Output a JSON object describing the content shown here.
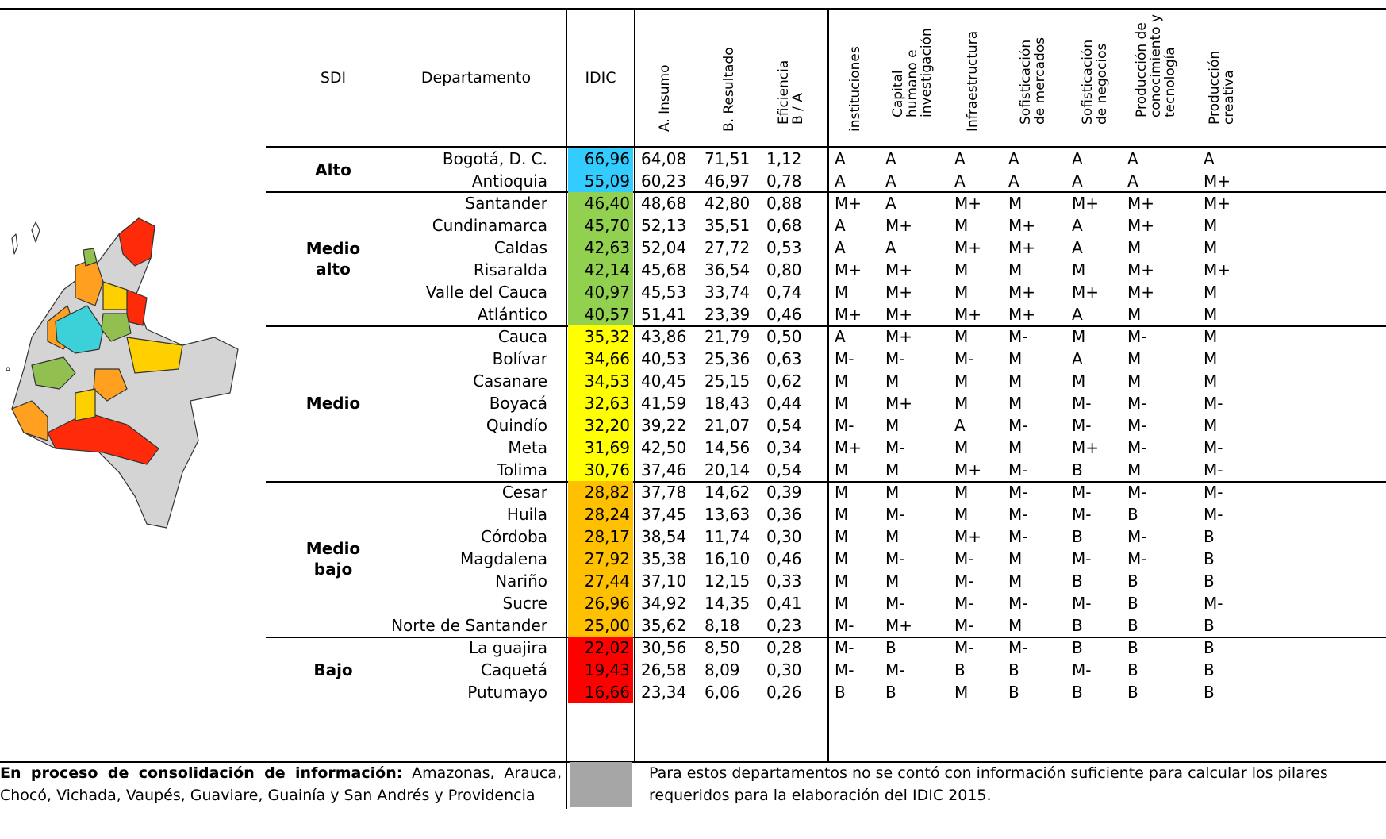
{
  "headers": {
    "sdi": "SDI",
    "departamento": "Departamento",
    "idic": "IDIC",
    "insumo": "A. Insumo",
    "resultado": "B. Resultado",
    "eficiencia": "Eficiencia\nB / A",
    "instituciones": "instituciones",
    "capital": "Capital\nhumano e\ninvestigación",
    "infraestructura": "Infraestructura",
    "sof_mercados": "Sofisticación\nde mercados",
    "sof_negocios": "Sofisticación\nde negocios",
    "produccion_conocimiento": "Producción de\nconocimiento y\ntecnología",
    "produccion_creativa": "Producción\ncreativa"
  },
  "colors": {
    "Alto": "#33ccff",
    "Medio alto": "#92d050",
    "Medio": "#ffff00",
    "Medio bajo": "#ffc000",
    "Bajo": "#ff0000",
    "gray": "#a6a6a6"
  },
  "groups": [
    {
      "label": "Alto",
      "rows": [
        {
          "dep": "Bogotá, D. C.",
          "idic": "66,96",
          "a": "64,08",
          "b": "71,51",
          "e": "1,12",
          "p": [
            "A",
            "A",
            "A",
            "A",
            "A",
            "A",
            "A"
          ]
        },
        {
          "dep": "Antioquia",
          "idic": "55,09",
          "a": "60,23",
          "b": "46,97",
          "e": "0,78",
          "p": [
            "A",
            "A",
            "A",
            "A",
            "A",
            "A",
            "M+"
          ]
        }
      ]
    },
    {
      "label": "Medio\nalto",
      "rows": [
        {
          "dep": "Santander",
          "idic": "46,40",
          "a": "48,68",
          "b": "42,80",
          "e": "0,88",
          "p": [
            "M+",
            "A",
            "M+",
            "M",
            "M+",
            "M+",
            "M+"
          ]
        },
        {
          "dep": "Cundinamarca",
          "idic": "45,70",
          "a": "52,13",
          "b": "35,51",
          "e": "0,68",
          "p": [
            "A",
            "M+",
            "M",
            "M+",
            "A",
            "M+",
            "M"
          ]
        },
        {
          "dep": "Caldas",
          "idic": "42,63",
          "a": "52,04",
          "b": "27,72",
          "e": "0,53",
          "p": [
            "A",
            "A",
            "M+",
            "M+",
            "A",
            "M",
            "M"
          ]
        },
        {
          "dep": "Risaralda",
          "idic": "42,14",
          "a": "45,68",
          "b": "36,54",
          "e": "0,80",
          "p": [
            "M+",
            "M+",
            "M",
            "M",
            "M",
            "M+",
            "M+"
          ]
        },
        {
          "dep": "Valle del Cauca",
          "idic": "40,97",
          "a": "45,53",
          "b": "33,74",
          "e": "0,74",
          "p": [
            "M",
            "M+",
            "M",
            "M+",
            "M+",
            "M+",
            "M"
          ]
        },
        {
          "dep": "Atlántico",
          "idic": "40,57",
          "a": "51,41",
          "b": "23,39",
          "e": "0,46",
          "p": [
            "M+",
            "M+",
            "M+",
            "M+",
            "A",
            "M",
            "M"
          ]
        }
      ]
    },
    {
      "label": "Medio",
      "rows": [
        {
          "dep": "Cauca",
          "idic": "35,32",
          "a": "43,86",
          "b": "21,79",
          "e": "0,50",
          "p": [
            "A",
            "M+",
            "M",
            "M-",
            "M",
            "M-",
            "M"
          ]
        },
        {
          "dep": "Bolívar",
          "idic": "34,66",
          "a": "40,53",
          "b": "25,36",
          "e": "0,63",
          "p": [
            "M-",
            "M-",
            "M-",
            "M",
            "A",
            "M",
            "M"
          ]
        },
        {
          "dep": "Casanare",
          "idic": "34,53",
          "a": "40,45",
          "b": "25,15",
          "e": "0,62",
          "p": [
            "M",
            "M",
            "M",
            "M",
            "M",
            "M",
            "M"
          ]
        },
        {
          "dep": "Boyacá",
          "idic": "32,63",
          "a": "41,59",
          "b": "18,43",
          "e": "0,44",
          "p": [
            "M",
            "M+",
            "M",
            "M",
            "M-",
            "M-",
            "M-"
          ]
        },
        {
          "dep": "Quindío",
          "idic": "32,20",
          "a": "39,22",
          "b": "21,07",
          "e": "0,54",
          "p": [
            "M-",
            "M",
            "A",
            "M-",
            "M-",
            "M-",
            "M"
          ]
        },
        {
          "dep": "Meta",
          "idic": "31,69",
          "a": "42,50",
          "b": "14,56",
          "e": "0,34",
          "p": [
            "M+",
            "M-",
            "M",
            "M",
            "M+",
            "M-",
            "M-"
          ]
        },
        {
          "dep": "Tolima",
          "idic": "30,76",
          "a": "37,46",
          "b": "20,14",
          "e": "0,54",
          "p": [
            "M",
            "M",
            "M+",
            "M-",
            "B",
            "M",
            "M-"
          ]
        }
      ]
    },
    {
      "label": "Medio\nbajo",
      "rows": [
        {
          "dep": "Cesar",
          "idic": "28,82",
          "a": "37,78",
          "b": "14,62",
          "e": "0,39",
          "p": [
            "M",
            "M",
            "M",
            "M-",
            "M-",
            "M-",
            "M-"
          ]
        },
        {
          "dep": "Huila",
          "idic": "28,24",
          "a": "37,45",
          "b": "13,63",
          "e": "0,36",
          "p": [
            "M",
            "M-",
            "M",
            "M-",
            "M-",
            "B",
            "M-"
          ]
        },
        {
          "dep": "Córdoba",
          "idic": "28,17",
          "a": "38,54",
          "b": "11,74",
          "e": "0,30",
          "p": [
            "M",
            "M",
            "M+",
            "M-",
            "B",
            "M-",
            "B"
          ]
        },
        {
          "dep": "Magdalena",
          "idic": "27,92",
          "a": "35,38",
          "b": "16,10",
          "e": "0,46",
          "p": [
            "M",
            "M-",
            "M-",
            "M",
            "M-",
            "M-",
            "B"
          ]
        },
        {
          "dep": "Nariño",
          "idic": "27,44",
          "a": "37,10",
          "b": "12,15",
          "e": "0,33",
          "p": [
            "M",
            "M",
            "M-",
            "M",
            "B",
            "B",
            "B"
          ]
        },
        {
          "dep": "Sucre",
          "idic": "26,96",
          "a": "34,92",
          "b": "14,35",
          "e": "0,41",
          "p": [
            "M",
            "M-",
            "M-",
            "M-",
            "M-",
            "B",
            "M-"
          ]
        },
        {
          "dep": "Norte de Santander",
          "idic": "25,00",
          "a": "35,62",
          "b": "8,18",
          "e": "0,23",
          "p": [
            "M-",
            "M+",
            "M-",
            "M",
            "B",
            "B",
            "B"
          ]
        }
      ]
    },
    {
      "label": "Bajo",
      "rows": [
        {
          "dep": "La guajira",
          "idic": "22,02",
          "a": "30,56",
          "b": "8,50",
          "e": "0,28",
          "p": [
            "M-",
            "B",
            "M-",
            "M-",
            "B",
            "B",
            "B"
          ]
        },
        {
          "dep": "Caquetá",
          "idic": "19,43",
          "a": "26,58",
          "b": "8,09",
          "e": "0,30",
          "p": [
            "M-",
            "M-",
            "B",
            "B",
            "M-",
            "B",
            "B"
          ]
        },
        {
          "dep": "Putumayo",
          "idic": "16,66",
          "a": "23,34",
          "b": "6,06",
          "e": "0,26",
          "p": [
            "B",
            "B",
            "M",
            "B",
            "B",
            "B",
            "B"
          ]
        }
      ]
    }
  ],
  "footer": {
    "left_bold": "En proceso de consolidación de información:",
    "left_rest": " Amazonas, Arauca, Chocó, Vichada, Vaupés, Guaviare, Guainía y San Andrés y Providencia",
    "right": "Para estos departamentos no se contó con información suficiente para calcular los pilares requeridos para la elaboración del IDIC 2015."
  }
}
